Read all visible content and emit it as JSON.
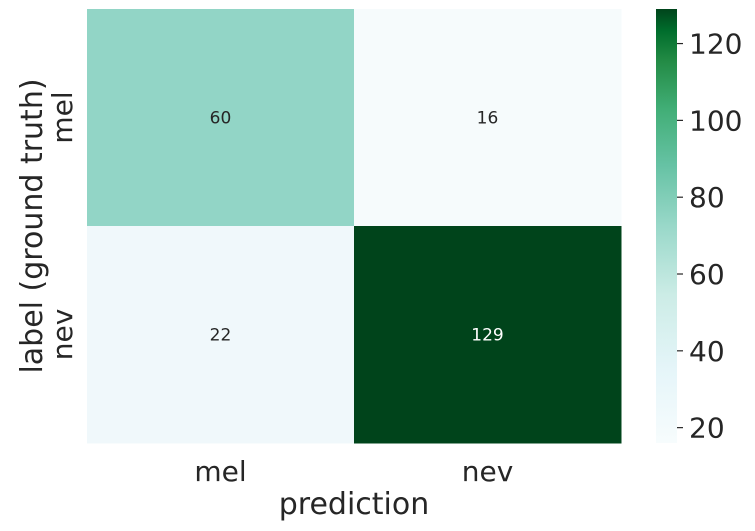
{
  "chart_data": {
    "type": "heatmap",
    "title": "",
    "xlabel": "prediction",
    "ylabel": "label (ground truth)",
    "x_categories": [
      "mel",
      "nev"
    ],
    "y_categories": [
      "mel",
      "nev"
    ],
    "matrix": [
      [
        60,
        16
      ],
      [
        22,
        129
      ]
    ],
    "colormap": "BuGn",
    "color_range": [
      16,
      129
    ],
    "colorbar_ticks": [
      20,
      40,
      60,
      80,
      100,
      120
    ],
    "colorbar_labels": [
      "20",
      "40",
      "60",
      "80",
      "100",
      "120"
    ],
    "cell_labels": [
      [
        "60",
        "16"
      ],
      [
        "22",
        "129"
      ]
    ],
    "colors": {
      "cell_0_0": "#92d5c6",
      "cell_0_1": "#f6fbfc",
      "cell_1_0": "#f0f8fb",
      "cell_1_1": "#00441b"
    }
  }
}
